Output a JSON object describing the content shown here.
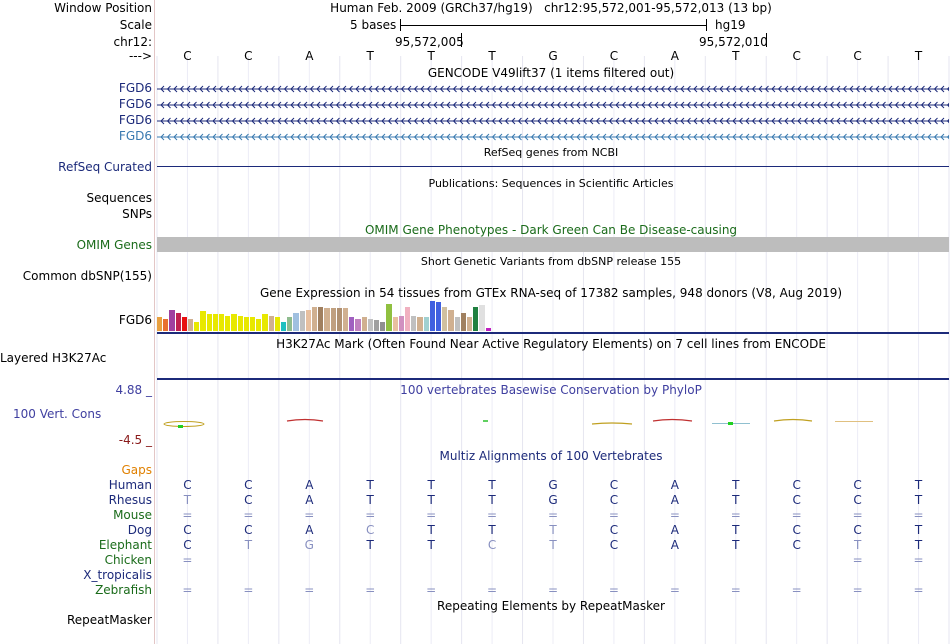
{
  "header": {
    "window_position_label": "Window Position",
    "window_position_text": "Human Feb. 2009 (GRCh37/hg19)   chr12:95,572,001-95,572,013 (13 bp)",
    "scale_label": "Scale",
    "scale_text": "5 bases",
    "scale_assembly": "hg19",
    "chrom_label": "chr12:",
    "coord_a": "95,572,005",
    "coord_b": "95,572,010",
    "strand_label": "--->",
    "bases": [
      "C",
      "C",
      "A",
      "T",
      "T",
      "T",
      "G",
      "C",
      "A",
      "T",
      "C",
      "C",
      "T"
    ]
  },
  "gencode": {
    "title": "GENCODE V49lift37 (1 items filtered out)",
    "rows": [
      {
        "label": "FGD6",
        "color": "#1c2a7a"
      },
      {
        "label": "FGD6",
        "color": "#1c2a7a"
      },
      {
        "label": "FGD6",
        "color": "#1c2a7a"
      },
      {
        "label": "FGD6",
        "color": "#3a7ab0"
      }
    ]
  },
  "refseq": {
    "title": "RefSeq genes from NCBI",
    "label": "RefSeq Curated"
  },
  "publications": {
    "title": "Publications: Sequences in Scientific Articles",
    "label": "Sequences"
  },
  "snps": {
    "label": "SNPs"
  },
  "omim": {
    "title": "OMIM Gene Phenotypes - Dark Green Can Be Disease-causing",
    "label": "OMIM Genes",
    "color": "#1a6b1a"
  },
  "dbsnp": {
    "title": "Short Genetic Variants from dbSNP release 155",
    "label": "Common dbSNP(155)"
  },
  "gtex": {
    "title": "Gene Expression in 54 tissues from GTEx RNA-seq of 17382 samples, 948 donors (V8, Aug 2019)",
    "label": "FGD6",
    "values": [
      0.45,
      0.4,
      0.7,
      0.6,
      0.45,
      0.4,
      0.3,
      0.65,
      0.55,
      0.55,
      0.55,
      0.5,
      0.55,
      0.5,
      0.45,
      0.45,
      0.4,
      0.55,
      0.5,
      0.45,
      0.3,
      0.45,
      0.6,
      0.65,
      0.7,
      0.8,
      0.8,
      0.75,
      0.75,
      0.75,
      0.75,
      0.45,
      0.4,
      0.45,
      0.4,
      0.35,
      0.3,
      0.9,
      0.45,
      0.5,
      0.8,
      0.5,
      0.45,
      0.45,
      1.0,
      0.95,
      0.8,
      0.7,
      0.45,
      0.6,
      0.45,
      0.8,
      0.85,
      0.1
    ],
    "colors": [
      "#e8a040",
      "#e87030",
      "#a040a0",
      "#c02050",
      "#e81010",
      "#d0b090",
      "#e8e800",
      "#e8e800",
      "#e8e800",
      "#e8e800",
      "#e8e800",
      "#e8e800",
      "#e8e800",
      "#e8e800",
      "#e8e800",
      "#e8e800",
      "#e8e800",
      "#e8e800",
      "#d0b090",
      "#e8e800",
      "#20c0c0",
      "#8fbc8f",
      "#a0c0e0",
      "#c0c0c0",
      "#e8c0a0",
      "#d0b090",
      "#a08060",
      "#d0b090",
      "#c0a080",
      "#b09070",
      "#d0b090",
      "#a060c0",
      "#c080c0",
      "#d0b090",
      "#c0c0c0",
      "#a0a0a0",
      "#909090",
      "#90c040",
      "#e8c0a0",
      "#d090c0",
      "#f0b0c0",
      "#c0c0c0",
      "#d0b090",
      "#a0d0d0",
      "#4060e0",
      "#4060e0",
      "#d0c0a0",
      "#d0b090",
      "#c0c0c0",
      "#a08060",
      "#d0b090",
      "#208040",
      "#e0e0e0",
      "#c020c0"
    ]
  },
  "h3k27ac": {
    "title": "H3K27Ac Mark (Often Found Near Active Regulatory Elements) on 7 cell lines from ENCODE",
    "label": "Layered H3K27Ac"
  },
  "conservation": {
    "title": "100 vertebrates Basewise Conservation by PhyloP",
    "label": "100 Vert. Cons",
    "ymax": "4.88 _",
    "ymin": "-4.5 _",
    "label_color": "#3f3fa0",
    "min_color": "#8a1a1a"
  },
  "multiz": {
    "title": "Multiz Alignments of 100 Vertebrates",
    "gaps_label": "Gaps",
    "gaps_color": "#e08000",
    "species": [
      {
        "name": "Human",
        "color": "#1c2a7a",
        "bases": [
          "C",
          "C",
          "A",
          "T",
          "T",
          "T",
          "G",
          "C",
          "A",
          "T",
          "C",
          "C",
          "T"
        ],
        "light": []
      },
      {
        "name": "Rhesus",
        "color": "#1c2a7a",
        "bases": [
          "T",
          "C",
          "A",
          "T",
          "T",
          "T",
          "G",
          "C",
          "A",
          "T",
          "C",
          "C",
          "T"
        ],
        "light": [
          0
        ]
      },
      {
        "name": "Mouse",
        "color": "#1a6b1a",
        "bases": [
          "=",
          "=",
          "=",
          "=",
          "=",
          "=",
          "=",
          "=",
          "=",
          "=",
          "=",
          "=",
          "="
        ],
        "light": [
          0,
          1,
          2,
          3,
          4,
          5,
          6,
          7,
          8,
          9,
          10,
          11,
          12
        ]
      },
      {
        "name": "Dog",
        "color": "#1c2a7a",
        "bases": [
          "C",
          "C",
          "A",
          "C",
          "T",
          "T",
          "T",
          "C",
          "A",
          "T",
          "C",
          "C",
          "T"
        ],
        "light": [
          3,
          6
        ]
      },
      {
        "name": "Elephant",
        "color": "#1a6b1a",
        "bases": [
          "C",
          "T",
          "G",
          "T",
          "T",
          "C",
          "T",
          "C",
          "A",
          "T",
          "C",
          "T",
          "T"
        ],
        "light": [
          1,
          2,
          5,
          6,
          11
        ]
      },
      {
        "name": "Chicken",
        "color": "#1a6b1a",
        "bases": [
          "=",
          "",
          "",
          "",
          "",
          "",
          "",
          "",
          "",
          "",
          "",
          "=",
          "="
        ],
        "light": [
          0,
          11,
          12
        ]
      },
      {
        "name": "X_tropicalis",
        "color": "#1c2a7a",
        "bases": [
          "",
          "",
          "",
          "",
          "",
          "",
          "",
          "",
          "",
          "",
          "",
          "",
          ""
        ],
        "light": []
      },
      {
        "name": "Zebrafish",
        "color": "#1a6b1a",
        "bases": [
          "=",
          "=",
          "=",
          "=",
          "=",
          "=",
          "=",
          "=",
          "=",
          "=",
          "=",
          "=",
          "="
        ],
        "light": [
          0,
          1,
          2,
          3,
          4,
          5,
          6,
          7,
          8,
          9,
          10,
          11,
          12
        ]
      }
    ]
  },
  "repeatmasker": {
    "title": "Repeating Elements by RepeatMasker",
    "label": "RepeatMasker"
  }
}
